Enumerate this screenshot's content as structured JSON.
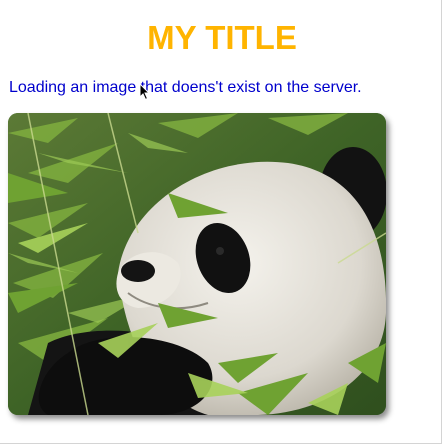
{
  "page": {
    "title": "MY TITLE",
    "subtitle": "Loading an image that doens't exist on the server."
  },
  "image": {
    "subject": "panda-photo",
    "alt": ""
  },
  "colors": {
    "title": "#FFB400",
    "subtitle": "#0000CC",
    "background": "#FFFFFF"
  },
  "icons": {
    "cursor": "arrow-cursor-icon"
  }
}
